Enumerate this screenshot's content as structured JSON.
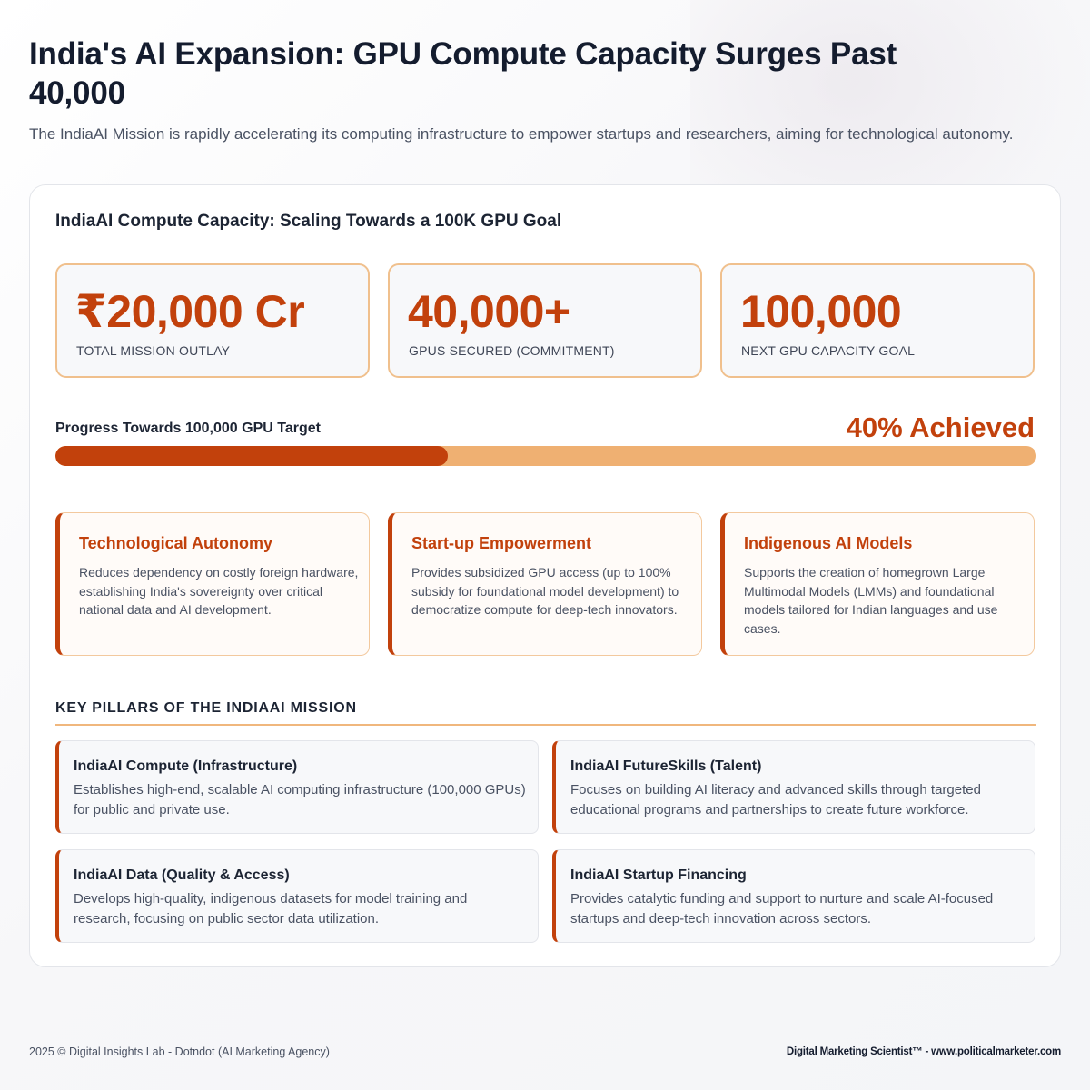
{
  "header": {
    "title": "India's AI Expansion: GPU Compute Capacity Surges Past 40,000",
    "subtitle": "The IndiaAI Mission is rapidly accelerating its computing infrastructure to empower startups and researchers, aiming for technological autonomy."
  },
  "card": {
    "title": "IndiaAI Compute Capacity: Scaling Towards a 100K GPU Goal",
    "stats": [
      {
        "value": "₹20,000 Cr",
        "label": "TOTAL MISSION OUTLAY"
      },
      {
        "value": "40,000+",
        "label": "GPUS SECURED (COMMITMENT)"
      },
      {
        "value": "100,000",
        "label": "NEXT GPU CAPACITY GOAL"
      }
    ],
    "progress": {
      "label": "Progress Towards 100,000 GPU Target",
      "text": "40% Achieved",
      "fraction": 0.4
    },
    "features": [
      {
        "title": "Technological Autonomy",
        "desc": "Reduces dependency on costly foreign hardware, establishing India's sovereignty over critical national data and AI development."
      },
      {
        "title": "Start-up Empowerment",
        "desc": "Provides subsidized GPU access (up to 100% subsidy for foundational model development) to democratize compute for deep-tech innovators."
      },
      {
        "title": "Indigenous AI Models",
        "desc": "Supports the creation of homegrown Large Multimodal Models (LMMs) and foundational models tailored for Indian languages and use cases."
      }
    ],
    "pillars_heading": "KEY PILLARS OF THE INDIAAI MISSION",
    "pillars": [
      {
        "title": "IndiaAI Compute (Infrastructure)",
        "desc": "Establishes high-end, scalable AI computing infrastructure (100,000 GPUs) for public and private use."
      },
      {
        "title": "IndiaAI FutureSkills (Talent)",
        "desc": "Focuses on building AI literacy and advanced skills through targeted educational programs and partnerships to create future workforce."
      },
      {
        "title": "IndiaAI Data (Quality & Access)",
        "desc": "Develops high-quality, indigenous datasets for model training and research, focusing on public sector data utilization."
      },
      {
        "title": "IndiaAI Startup Financing",
        "desc": "Provides catalytic funding and support to nurture and scale AI-focused startups and deep-tech innovation across sectors."
      }
    ]
  },
  "footer": {
    "left": "2025 © Digital Insights Lab - Dotndot (AI Marketing Agency)",
    "right": "Digital Marketing Scientist™ - www.politicalmarketer.com"
  },
  "colors": {
    "accent": "#c2410c",
    "accent_light": "#efb072",
    "border_orange": "#f0c08d"
  }
}
